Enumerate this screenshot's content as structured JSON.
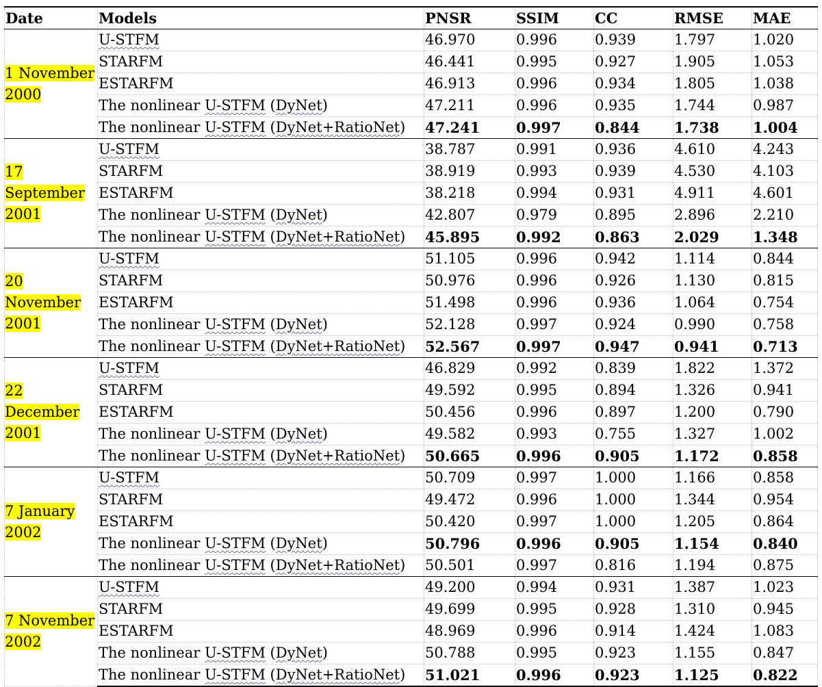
{
  "header": {
    "date": "Date",
    "models": "Models",
    "pnsr": "PNSR",
    "ssim": "SSIM",
    "cc": "CC",
    "rmse": "RMSE",
    "mae": "MAE"
  },
  "groups": [
    {
      "date_lines": [
        "1 November",
        "2000"
      ],
      "best_row": 4,
      "rows": [
        {
          "model": "U-STFM",
          "pnsr": "46.970",
          "ssim": "0.996",
          "cc": "0.939",
          "rmse": "1.797",
          "mae": "1.020"
        },
        {
          "model": "STARFM",
          "pnsr": "46.441",
          "ssim": "0.995",
          "cc": "0.927",
          "rmse": "1.905",
          "mae": "1.053"
        },
        {
          "model": "ESTARFM",
          "pnsr": "46.913",
          "ssim": "0.996",
          "cc": "0.934",
          "rmse": "1.805",
          "mae": "1.038"
        },
        {
          "model": "The nonlinear U-STFM (DyNet)",
          "pnsr": "47.211",
          "ssim": "0.996",
          "cc": "0.935",
          "rmse": "1.744",
          "mae": "0.987"
        },
        {
          "model": "The nonlinear U-STFM (DyNet+RatioNet)",
          "pnsr": "47.241",
          "ssim": "0.997",
          "cc": "0.844",
          "rmse": "1.738",
          "mae": "1.004"
        }
      ]
    },
    {
      "date_lines": [
        "17",
        "September",
        "2001"
      ],
      "best_row": 4,
      "rows": [
        {
          "model": "U-STFM",
          "pnsr": "38.787",
          "ssim": "0.991",
          "cc": "0.936",
          "rmse": "4.610",
          "mae": "4.243"
        },
        {
          "model": "STARFM",
          "pnsr": "38.919",
          "ssim": "0.993",
          "cc": "0.939",
          "rmse": "4.530",
          "mae": "4.103"
        },
        {
          "model": "ESTARFM",
          "pnsr": "38.218",
          "ssim": "0.994",
          "cc": "0.931",
          "rmse": "4.911",
          "mae": "4.601"
        },
        {
          "model": "The nonlinear U-STFM (DyNet)",
          "pnsr": "42.807",
          "ssim": "0.979",
          "cc": "0.895",
          "rmse": "2.896",
          "mae": "2.210"
        },
        {
          "model": "The nonlinear U-STFM (DyNet+RatioNet)",
          "pnsr": "45.895",
          "ssim": "0.992",
          "cc": "0.863",
          "rmse": "2.029",
          "mae": "1.348"
        }
      ]
    },
    {
      "date_lines": [
        "20",
        "November",
        "2001"
      ],
      "best_row": 4,
      "rows": [
        {
          "model": "U-STFM",
          "pnsr": "51.105",
          "ssim": "0.996",
          "cc": "0.942",
          "rmse": "1.114",
          "mae": "0.844"
        },
        {
          "model": "STARFM",
          "pnsr": "50.976",
          "ssim": "0.996",
          "cc": "0.926",
          "rmse": "1.130",
          "mae": "0.815"
        },
        {
          "model": "ESTARFM",
          "pnsr": "51.498",
          "ssim": "0.996",
          "cc": "0.936",
          "rmse": "1.064",
          "mae": "0.754"
        },
        {
          "model": "The nonlinear U-STFM (DyNet)",
          "pnsr": "52.128",
          "ssim": "0.997",
          "cc": "0.924",
          "rmse": "0.990",
          "mae": "0.758"
        },
        {
          "model": "The nonlinear U-STFM (DyNet+RatioNet)",
          "pnsr": "52.567",
          "ssim": "0.997",
          "cc": "0.947",
          "rmse": "0.941",
          "mae": "0.713"
        }
      ]
    },
    {
      "date_lines": [
        "22 December",
        "2001"
      ],
      "best_row": 4,
      "rows": [
        {
          "model": "U-STFM",
          "pnsr": "46.829",
          "ssim": "0.992",
          "cc": "0.839",
          "rmse": "1.822",
          "mae": "1.372"
        },
        {
          "model": "STARFM",
          "pnsr": "49.592",
          "ssim": "0.995",
          "cc": "0.894",
          "rmse": "1.326",
          "mae": "0.941"
        },
        {
          "model": "ESTARFM",
          "pnsr": "50.456",
          "ssim": "0.996",
          "cc": "0.897",
          "rmse": "1.200",
          "mae": "0.790"
        },
        {
          "model": "The nonlinear U-STFM (DyNet)",
          "pnsr": "49.582",
          "ssim": "0.993",
          "cc": "0.755",
          "rmse": "1.327",
          "mae": "1.002"
        },
        {
          "model": "The nonlinear U-STFM (DyNet+RatioNet)",
          "pnsr": "50.665",
          "ssim": "0.996",
          "cc": "0.905",
          "rmse": "1.172",
          "mae": "0.858"
        }
      ]
    },
    {
      "date_lines": [
        "7 January",
        "2002"
      ],
      "best_row": 3,
      "rows": [
        {
          "model": "U-STFM",
          "pnsr": "50.709",
          "ssim": "0.997",
          "cc": "1.000",
          "rmse": "1.166",
          "mae": "0.858"
        },
        {
          "model": "STARFM",
          "pnsr": "49.472",
          "ssim": "0.996",
          "cc": "1.000",
          "rmse": "1.344",
          "mae": "0.954"
        },
        {
          "model": "ESTARFM",
          "pnsr": "50.420",
          "ssim": "0.997",
          "cc": "1.000",
          "rmse": "1.205",
          "mae": "0.864"
        },
        {
          "model": "The nonlinear U-STFM (DyNet)",
          "pnsr": "50.796",
          "ssim": "0.996",
          "cc": "0.905",
          "rmse": "1.154",
          "mae": "0.840"
        },
        {
          "model": "The nonlinear U-STFM (DyNet+RatioNet)",
          "pnsr": "50.501",
          "ssim": "0.997",
          "cc": "0.816",
          "rmse": "1.194",
          "mae": "0.875"
        }
      ]
    },
    {
      "date_lines": [
        "7 November",
        "2002"
      ],
      "best_row": 4,
      "rows": [
        {
          "model": "U-STFM",
          "pnsr": "49.200",
          "ssim": "0.994",
          "cc": "0.931",
          "rmse": "1.387",
          "mae": "1.023"
        },
        {
          "model": "STARFM",
          "pnsr": "49.699",
          "ssim": "0.995",
          "cc": "0.928",
          "rmse": "1.310",
          "mae": "0.945"
        },
        {
          "model": "ESTARFM",
          "pnsr": "48.969",
          "ssim": "0.996",
          "cc": "0.914",
          "rmse": "1.424",
          "mae": "1.083"
        },
        {
          "model": "The nonlinear U-STFM (DyNet)",
          "pnsr": "50.788",
          "ssim": "0.995",
          "cc": "0.923",
          "rmse": "1.155",
          "mae": "0.847"
        },
        {
          "model": "The nonlinear U-STFM (DyNet+RatioNet)",
          "pnsr": "51.021",
          "ssim": "0.996",
          "cc": "0.923",
          "rmse": "1.125",
          "mae": "0.822"
        }
      ]
    }
  ]
}
